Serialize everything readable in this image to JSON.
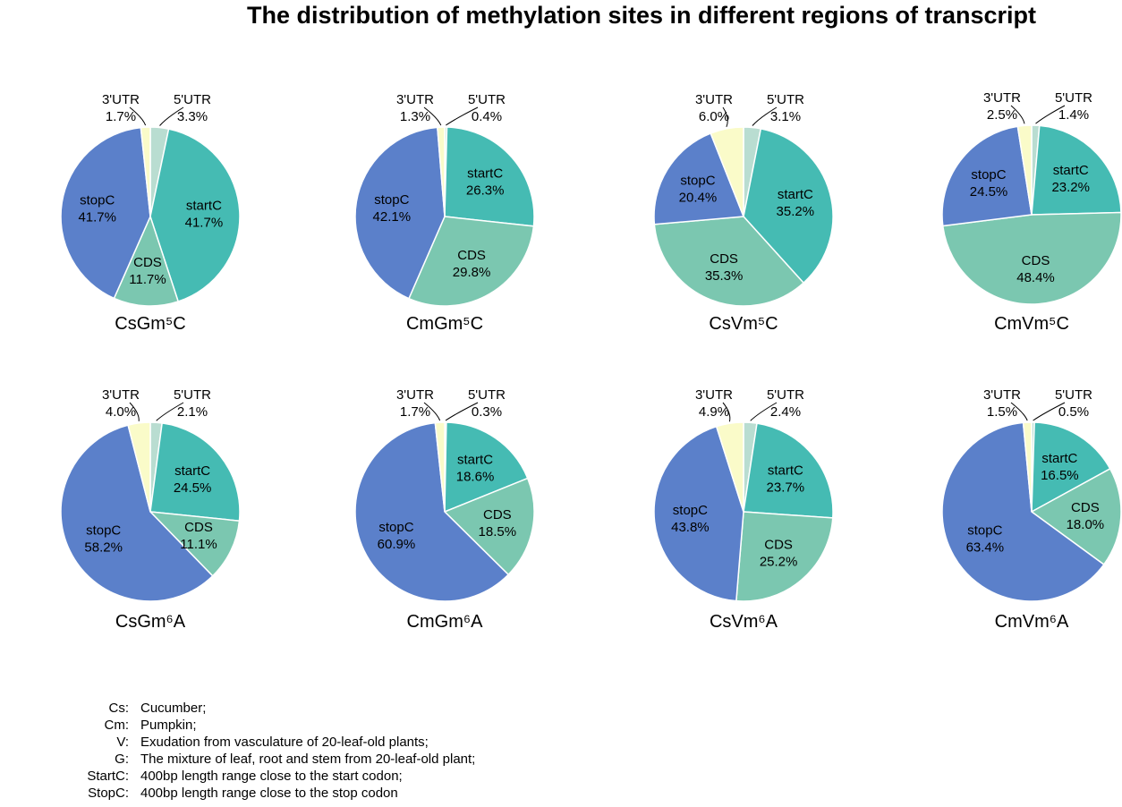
{
  "title": "The distribution of methylation sites in different regions of transcript",
  "colors": {
    "5'UTR": "#b9ddd1",
    "startC": "#45bbb3",
    "CDS": "#7bc7b0",
    "stopC": "#5b80ca",
    "3'UTR": "#fafbc9"
  },
  "chart_data": [
    {
      "type": "pie",
      "title": "CsGm⁵C",
      "labels": [
        "5'UTR",
        "startC",
        "CDS",
        "stopC",
        "3'UTR"
      ],
      "values": [
        3.3,
        41.7,
        11.7,
        41.7,
        1.7
      ],
      "display": [
        "3.3%",
        "41.7%",
        "11.7%",
        "41.7%",
        "1.7%"
      ]
    },
    {
      "type": "pie",
      "title": "CmGm⁵C",
      "labels": [
        "5'UTR",
        "startC",
        "CDS",
        "stopC",
        "3'UTR"
      ],
      "values": [
        0.4,
        26.3,
        29.8,
        42.1,
        1.3
      ],
      "display": [
        "0.4%",
        "26.3%",
        "29.8%",
        "42.1%",
        "1.3%"
      ]
    },
    {
      "type": "pie",
      "title": "CsVm⁵C",
      "labels": [
        "5'UTR",
        "startC",
        "CDS",
        "stopC",
        "3'UTR"
      ],
      "values": [
        3.1,
        35.2,
        35.3,
        20.4,
        6.0
      ],
      "display": [
        "3.1%",
        "35.2%",
        "35.3%",
        "20.4%",
        "6.0%"
      ]
    },
    {
      "type": "pie",
      "title": "CmVm⁵C",
      "labels": [
        "5'UTR",
        "startC",
        "CDS",
        "stopC",
        "3'UTR"
      ],
      "values": [
        1.4,
        23.2,
        48.4,
        24.5,
        2.5
      ],
      "display": [
        "1.4%",
        "23.2%",
        "48.4%",
        "24.5%",
        "2.5%"
      ]
    },
    {
      "type": "pie",
      "title": "CsGm⁶A",
      "labels": [
        "5'UTR",
        "startC",
        "CDS",
        "stopC",
        "3'UTR"
      ],
      "values": [
        2.1,
        24.5,
        11.1,
        58.2,
        4.0
      ],
      "display": [
        "2.1%",
        "24.5%",
        "11.1%",
        "58.2%",
        "4.0%"
      ]
    },
    {
      "type": "pie",
      "title": "CmGm⁶A",
      "labels": [
        "5'UTR",
        "startC",
        "CDS",
        "stopC",
        "3'UTR"
      ],
      "values": [
        0.3,
        18.6,
        18.5,
        60.9,
        1.7
      ],
      "display": [
        "0.3%",
        "18.6%",
        "18.5%",
        "60.9%",
        "1.7%"
      ]
    },
    {
      "type": "pie",
      "title": "CsVm⁶A",
      "labels": [
        "5'UTR",
        "startC",
        "CDS",
        "stopC",
        "3'UTR"
      ],
      "values": [
        2.4,
        23.7,
        25.2,
        43.8,
        4.9
      ],
      "display": [
        "2.4%",
        "23.7%",
        "25.2%",
        "43.8%",
        "4.9%"
      ]
    },
    {
      "type": "pie",
      "title": "CmVm⁶A",
      "labels": [
        "5'UTR",
        "startC",
        "CDS",
        "stopC",
        "3'UTR"
      ],
      "values": [
        0.5,
        16.5,
        18.0,
        63.4,
        1.5
      ],
      "display": [
        "0.5%",
        "16.5%",
        "18.0%",
        "63.4%",
        "1.5%"
      ]
    }
  ],
  "legend": [
    {
      "key": "Cs:",
      "desc": "Cucumber;"
    },
    {
      "key": "Cm:",
      "desc": "Pumpkin;"
    },
    {
      "key": "V:",
      "desc": "Exudation from vasculature of 20-leaf-old plants;"
    },
    {
      "key": "G:",
      "desc": "The mixture of leaf, root and stem from 20-leaf-old plant;"
    },
    {
      "key": "StartC:",
      "desc": "400bp length range close to the start codon;"
    },
    {
      "key": "StopC:",
      "desc": "400bp length range close to the stop codon"
    }
  ]
}
